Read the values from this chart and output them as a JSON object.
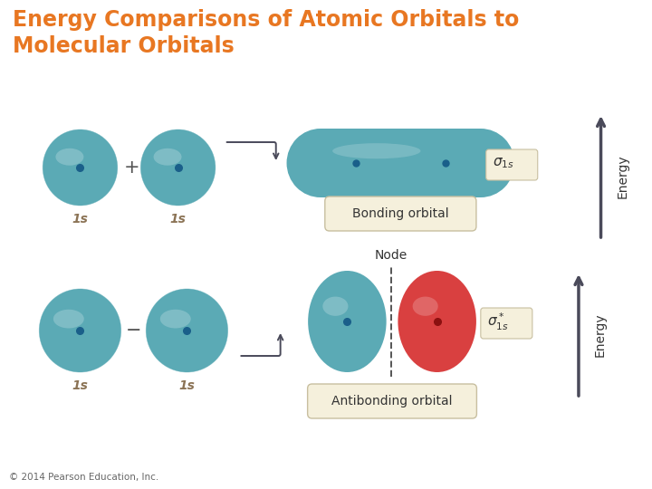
{
  "title_line1": "Energy Comparisons of Atomic Orbitals to",
  "title_line2": "Molecular Orbitals",
  "title_color": "#E87722",
  "bg_color": "#FFFFFF",
  "teal_color": "#5BAAB5",
  "red_color": "#D94040",
  "dot_color_teal": "#1A5F8A",
  "dot_color_red": "#8B1010",
  "arrow_color": "#4A4A5A",
  "box_fill": "#F5F0DC",
  "box_border": "#C8BFA0",
  "text_color": "#333333",
  "label_1s_color": "#8B7355",
  "plus_color": "#555555",
  "copyright": "© 2014 Pearson Education, Inc.",
  "bonding_label": "Bonding orbital",
  "antibonding_label": "Antibonding orbital",
  "energy_label": "Energy",
  "node_label": "Node",
  "sigma_box_fill": "#F5F0DC"
}
